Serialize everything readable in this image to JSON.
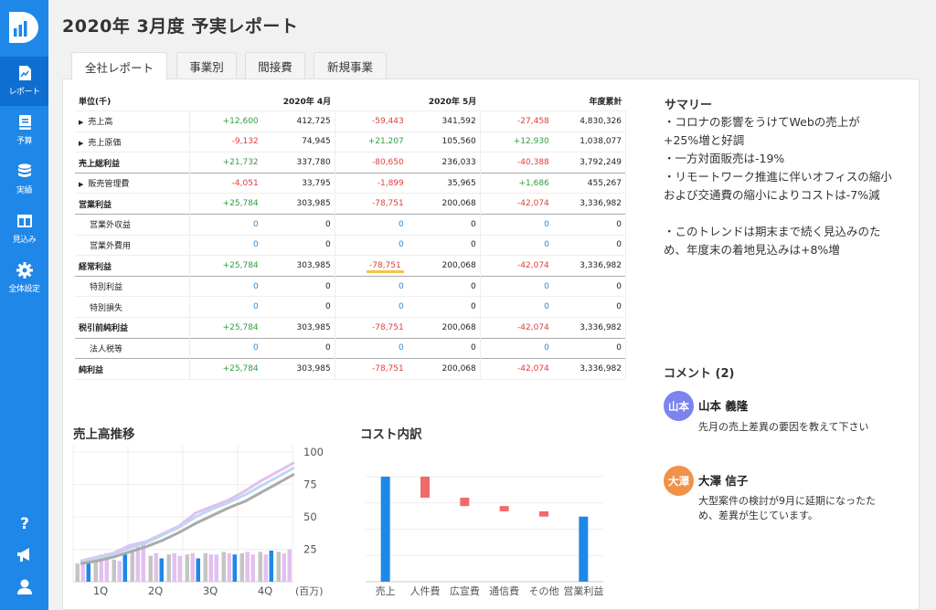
{
  "page": {
    "title": "2020年 3月度 予実レポート"
  },
  "sidebar": {
    "items": [
      {
        "label": "レポート",
        "icon": "report-icon"
      },
      {
        "label": "予算",
        "icon": "book-icon"
      },
      {
        "label": "実績",
        "icon": "database-icon"
      },
      {
        "label": "見込み",
        "icon": "columns-icon"
      },
      {
        "label": "全体設定",
        "icon": "gear-icon"
      }
    ],
    "bottom": [
      "help-icon",
      "megaphone-icon",
      "user-icon"
    ]
  },
  "tabs": [
    "全社レポート",
    "事業別",
    "間接費",
    "新規事業"
  ],
  "table": {
    "headers": [
      "単位(千)",
      "2020年 4月",
      "2020年 5月",
      "年度累計"
    ],
    "rows": [
      {
        "label": "売上高",
        "cells": [
          "+12,600",
          "412,725",
          "-59,443",
          "341,592",
          "-27,458",
          "4,830,326"
        ]
      },
      {
        "label": "売上原価",
        "cells": [
          "-9,132",
          "74,945",
          "+21,207",
          "105,560",
          "+12,930",
          "1,038,077"
        ]
      },
      {
        "label": "売上総利益",
        "cells": [
          "+21,732",
          "337,780",
          "-80,650",
          "236,033",
          "-40,388",
          "3,792,249"
        ]
      },
      {
        "label": "販売管理費",
        "cells": [
          "-4,051",
          "33,795",
          "-1,899",
          "35,965",
          "+1,686",
          "455,267"
        ]
      },
      {
        "label": "営業利益",
        "cells": [
          "+25,784",
          "303,985",
          "-78,751",
          "200,068",
          "-42,074",
          "3,336,982"
        ]
      },
      {
        "label": "営業外収益",
        "cells": [
          "0",
          "0",
          "0",
          "0",
          "0",
          "0"
        ]
      },
      {
        "label": "営業外費用",
        "cells": [
          "0",
          "0",
          "0",
          "0",
          "0",
          "0"
        ]
      },
      {
        "label": "経常利益",
        "cells": [
          "+25,784",
          "303,985",
          "-78,751",
          "200,068",
          "-42,074",
          "3,336,982"
        ]
      },
      {
        "label": "特別利益",
        "cells": [
          "0",
          "0",
          "0",
          "0",
          "0",
          "0"
        ]
      },
      {
        "label": "特別損失",
        "cells": [
          "0",
          "0",
          "0",
          "0",
          "0",
          "0"
        ]
      },
      {
        "label": "税引前純利益",
        "cells": [
          "+25,784",
          "303,985",
          "-78,751",
          "200,068",
          "-42,074",
          "3,336,982"
        ]
      },
      {
        "label": "法人税等",
        "cells": [
          "0",
          "0",
          "0",
          "0",
          "0",
          "0"
        ]
      },
      {
        "label": "純利益",
        "cells": [
          "+25,784",
          "303,985",
          "-78,751",
          "200,068",
          "-42,074",
          "3,336,982"
        ]
      }
    ]
  },
  "summary": {
    "title": "サマリー",
    "lines": [
      "・コロナの影響をうけてWebの売上が+25%増と好調",
      "・一方対面販売は-19%",
      "・リモートワーク推進に伴いオフィスの縮小および交通費の縮小によりコストは-7%減",
      "・このトレンドは期末まで続く見込みのため、年度末の着地見込みは+8%増"
    ]
  },
  "comments": {
    "title": "コメント (2)",
    "items": [
      {
        "avatar": "山本",
        "name": "山本 義隆",
        "text": "先月の売上差異の要因を教えて下さい",
        "color": "#7a83ee"
      },
      {
        "avatar": "大澤",
        "name": "大澤 信子",
        "text": "大型案件の検討が9月に延期になったため、差異が生じています。",
        "color": "#f0924a"
      }
    ]
  },
  "charts": {
    "sales_title": "売上高推移",
    "cost_title": "コスト内訳"
  },
  "colors": {
    "accent": "#1f87e8",
    "positive": "#2e9e3e",
    "negative": "#e23b3b",
    "zero": "#2a8ad4",
    "highlight": "#f5c242"
  },
  "chart_data": [
    {
      "type": "bar",
      "title": "売上高推移",
      "categories": [
        "1Q",
        "2Q",
        "3Q",
        "4Q"
      ],
      "y_ticks": [
        25,
        50,
        75,
        100
      ],
      "unit": "(百万)",
      "ylim": [
        0,
        105
      ],
      "bars_per_month": [
        [
          14,
          16,
          17
        ],
        [
          19,
          21,
          22
        ],
        [
          17,
          16,
          21
        ],
        [
          23,
          27,
          30
        ],
        [
          20,
          22,
          18
        ],
        [
          21,
          22,
          20
        ],
        [
          21,
          22,
          18
        ],
        [
          22,
          21,
          21
        ],
        [
          23,
          22,
          21
        ],
        [
          22,
          23,
          21
        ],
        [
          23,
          21,
          24
        ],
        [
          23,
          22,
          25
        ]
      ],
      "lines": [
        {
          "color": "#e2c0f0",
          "values": [
            16,
            19,
            22,
            28,
            31,
            37,
            43,
            53,
            58,
            63,
            70,
            78,
            85,
            92
          ]
        },
        {
          "color": "#bfd7f2",
          "values": [
            15,
            18,
            21,
            26,
            30,
            36,
            42,
            50,
            56,
            61,
            67,
            74,
            81,
            88
          ]
        },
        {
          "color": "#aaaaaa",
          "values": [
            14,
            16,
            19,
            23,
            27,
            32,
            38,
            45,
            51,
            57,
            62,
            69,
            76,
            83
          ]
        }
      ]
    },
    {
      "type": "bar",
      "title": "コスト内訳",
      "categories": [
        "売上",
        "人件費",
        "広宣費",
        "通信費",
        "その他",
        "営業利益"
      ],
      "values": [
        100,
        -20,
        -8,
        -5,
        -5,
        62
      ],
      "base_color": "#1f87e8",
      "delta_color": "#f06a6a"
    }
  ]
}
